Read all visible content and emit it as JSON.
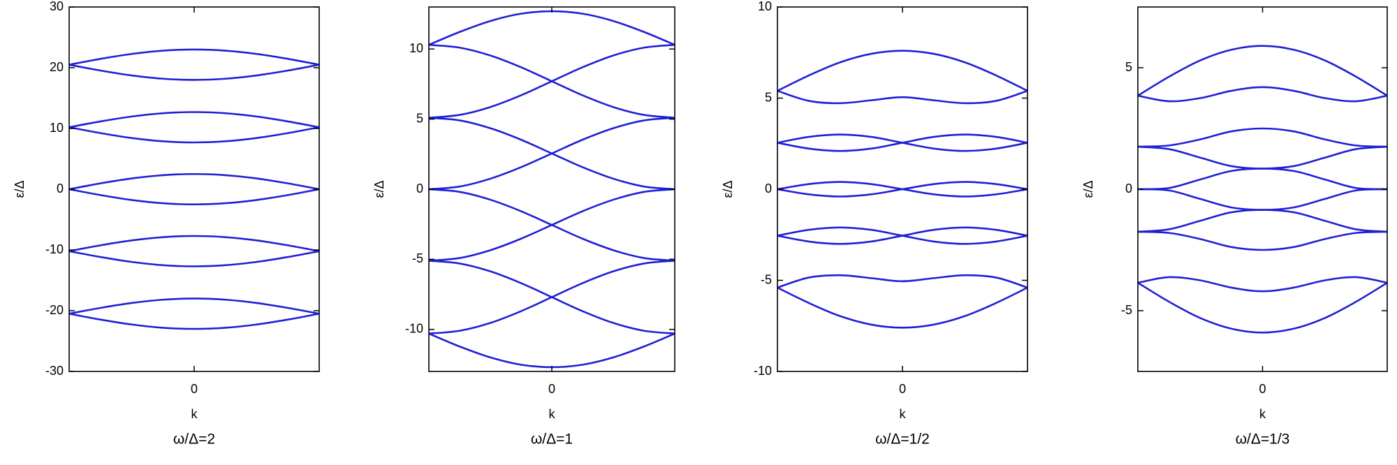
{
  "chart_data": [
    {
      "type": "line",
      "title": "ω/Δ=2",
      "xlabel": "k",
      "ylabel": "ε/Δ",
      "color": "#1f1fd6",
      "x": [
        -1,
        -0.75,
        -0.5,
        -0.25,
        0,
        0.25,
        0.5,
        0.75,
        1
      ],
      "xlim": [
        -1,
        1
      ],
      "xticks": [
        0
      ],
      "ylim": [
        -30,
        30
      ],
      "yticks": [
        -30,
        -20,
        -10,
        0,
        10,
        20,
        30
      ],
      "series": [
        {
          "values": [
            20.5,
            21.46,
            22.27,
            22.81,
            23,
            22.81,
            22.27,
            21.46,
            20.5
          ]
        },
        {
          "values": [
            20.5,
            19.54,
            18.73,
            18.19,
            18,
            18.19,
            18.73,
            19.54,
            20.5
          ]
        },
        {
          "values": [
            10.2,
            11.16,
            11.97,
            12.51,
            12.7,
            12.51,
            11.97,
            11.16,
            10.2
          ]
        },
        {
          "values": [
            10.2,
            9.24,
            8.43,
            7.89,
            7.7,
            7.89,
            8.43,
            9.24,
            10.2
          ]
        },
        {
          "values": [
            0,
            0.96,
            1.77,
            2.31,
            2.5,
            2.31,
            1.77,
            0.96,
            0
          ]
        },
        {
          "values": [
            0,
            -0.96,
            -1.77,
            -2.31,
            -2.5,
            -2.31,
            -1.77,
            -0.96,
            0
          ]
        },
        {
          "values": [
            -10.2,
            -9.24,
            -8.43,
            -7.89,
            -7.7,
            -7.89,
            -8.43,
            -9.24,
            -10.2
          ]
        },
        {
          "values": [
            -10.2,
            -11.16,
            -11.97,
            -12.51,
            -12.7,
            -12.51,
            -11.97,
            -11.16,
            -10.2
          ]
        },
        {
          "values": [
            -20.5,
            -19.54,
            -18.73,
            -18.19,
            -18,
            -18.19,
            -18.73,
            -19.54,
            -20.5
          ]
        },
        {
          "values": [
            -20.5,
            -21.46,
            -22.27,
            -22.81,
            -23,
            -22.81,
            -22.27,
            -21.46,
            -20.5
          ]
        }
      ]
    },
    {
      "type": "line",
      "title": "ω/Δ=1",
      "xlabel": "k",
      "ylabel": "ε/Δ",
      "color": "#1f1fd6",
      "x": [
        -1,
        -0.75,
        -0.5,
        -0.25,
        0,
        0.25,
        0.5,
        0.75,
        1
      ],
      "xlim": [
        -1,
        1
      ],
      "xticks": [
        0
      ],
      "ylim": [
        -13,
        13
      ],
      "yticks": [
        -10,
        -5,
        0,
        5,
        10
      ],
      "series": [
        {
          "values": [
            10.3,
            11.22,
            12.0,
            12.52,
            12.7,
            12.52,
            12.0,
            11.22,
            10.3
          ]
        },
        {
          "values": [
            10.3,
            10.1,
            9.54,
            8.7,
            7.7,
            6.7,
            5.86,
            5.3,
            5.1
          ]
        },
        {
          "values": [
            5.1,
            5.3,
            5.86,
            6.7,
            7.7,
            8.7,
            9.54,
            10.1,
            10.3
          ]
        },
        {
          "values": [
            5.1,
            4.91,
            4.35,
            3.53,
            2.55,
            1.57,
            0.75,
            0.19,
            0
          ]
        },
        {
          "values": [
            0,
            0.19,
            0.75,
            1.57,
            2.55,
            3.53,
            4.35,
            4.91,
            5.1
          ]
        },
        {
          "values": [
            0,
            -0.19,
            -0.75,
            -1.57,
            -2.55,
            -3.53,
            -4.35,
            -4.91,
            -5.1
          ]
        },
        {
          "values": [
            -5.1,
            -4.91,
            -4.35,
            -3.53,
            -2.55,
            -1.57,
            -0.75,
            -0.19,
            0
          ]
        },
        {
          "values": [
            -5.1,
            -5.3,
            -5.86,
            -6.7,
            -7.7,
            -8.7,
            -9.54,
            -10.1,
            -10.3
          ]
        },
        {
          "values": [
            -10.3,
            -10.1,
            -9.54,
            -8.7,
            -7.7,
            -6.7,
            -5.86,
            -5.3,
            -5.1
          ]
        },
        {
          "values": [
            -10.3,
            -11.22,
            -12.0,
            -12.52,
            -12.7,
            -12.52,
            -12.0,
            -11.22,
            -10.3
          ]
        }
      ]
    },
    {
      "type": "line",
      "title": "ω/Δ=1/2",
      "xlabel": "k",
      "ylabel": "ε/Δ",
      "color": "#1f1fd6",
      "x": [
        -1,
        -0.75,
        -0.5,
        -0.25,
        0,
        0.25,
        0.5,
        0.75,
        1
      ],
      "xlim": [
        -1,
        1
      ],
      "xticks": [
        0
      ],
      "ylim": [
        -10,
        10
      ],
      "yticks": [
        -10,
        -5,
        0,
        5,
        10
      ],
      "series": [
        {
          "values": [
            5.4,
            6.24,
            6.96,
            7.43,
            7.6,
            7.43,
            6.96,
            6.24,
            5.4
          ]
        },
        {
          "values": [
            5.4,
            4.85,
            4.72,
            4.88,
            5.05,
            4.88,
            4.72,
            4.85,
            5.4
          ]
        },
        {
          "values": [
            2.55,
            2.87,
            3.0,
            2.87,
            2.55,
            2.23,
            2.1,
            2.23,
            2.55
          ]
        },
        {
          "values": [
            2.55,
            2.23,
            2.1,
            2.23,
            2.55,
            2.87,
            3.0,
            2.87,
            2.55
          ]
        },
        {
          "values": [
            0,
            0.28,
            0.4,
            0.28,
            0,
            -0.28,
            -0.4,
            -0.28,
            0
          ]
        },
        {
          "values": [
            0,
            -0.28,
            -0.4,
            -0.28,
            0,
            0.28,
            0.4,
            0.28,
            0
          ]
        },
        {
          "values": [
            -2.55,
            -2.23,
            -2.1,
            -2.23,
            -2.55,
            -2.87,
            -3.0,
            -2.87,
            -2.55
          ]
        },
        {
          "values": [
            -2.55,
            -2.87,
            -3.0,
            -2.87,
            -2.55,
            -2.23,
            -2.1,
            -2.23,
            -2.55
          ]
        },
        {
          "values": [
            -5.4,
            -4.85,
            -4.72,
            -4.88,
            -5.05,
            -4.88,
            -4.72,
            -4.85,
            -5.4
          ]
        },
        {
          "values": [
            -5.4,
            -6.24,
            -6.96,
            -7.43,
            -7.6,
            -7.43,
            -6.96,
            -6.24,
            -5.4
          ]
        }
      ]
    },
    {
      "type": "line",
      "title": "ω/Δ=1/3",
      "xlabel": "k",
      "ylabel": "ε/Δ",
      "color": "#1f1fd6",
      "x": [
        -1,
        -0.75,
        -0.5,
        -0.25,
        0,
        0.25,
        0.5,
        0.75,
        1
      ],
      "xlim": [
        -1,
        1
      ],
      "xticks": [
        0
      ],
      "ylim": [
        -7.5,
        7.5
      ],
      "yticks": [
        -5,
        0,
        5
      ],
      "series": [
        {
          "values": [
            3.85,
            4.63,
            5.3,
            5.74,
            5.9,
            5.74,
            5.3,
            4.63,
            3.85
          ]
        },
        {
          "values": [
            3.85,
            3.62,
            3.75,
            4.05,
            4.2,
            4.05,
            3.75,
            3.62,
            3.85
          ]
        },
        {
          "values": [
            1.75,
            1.8,
            2.05,
            2.38,
            2.5,
            2.38,
            2.05,
            1.8,
            1.75
          ]
        },
        {
          "values": [
            1.75,
            1.65,
            1.3,
            0.95,
            0.85,
            0.95,
            1.3,
            1.65,
            1.75
          ]
        },
        {
          "values": [
            0,
            0.05,
            0.4,
            0.75,
            0.85,
            0.75,
            0.4,
            0.05,
            0
          ]
        },
        {
          "values": [
            0,
            -0.05,
            -0.4,
            -0.75,
            -0.85,
            -0.75,
            -0.4,
            -0.05,
            0
          ]
        },
        {
          "values": [
            -1.75,
            -1.65,
            -1.3,
            -0.95,
            -0.85,
            -0.95,
            -1.3,
            -1.65,
            -1.75
          ]
        },
        {
          "values": [
            -1.75,
            -1.8,
            -2.05,
            -2.38,
            -2.5,
            -2.38,
            -2.05,
            -1.8,
            -1.75
          ]
        },
        {
          "values": [
            -3.85,
            -3.62,
            -3.75,
            -4.05,
            -4.2,
            -4.05,
            -3.75,
            -3.62,
            -3.85
          ]
        },
        {
          "values": [
            -3.85,
            -4.63,
            -5.3,
            -5.74,
            -5.9,
            -5.74,
            -5.3,
            -4.63,
            -3.85
          ]
        }
      ]
    }
  ]
}
